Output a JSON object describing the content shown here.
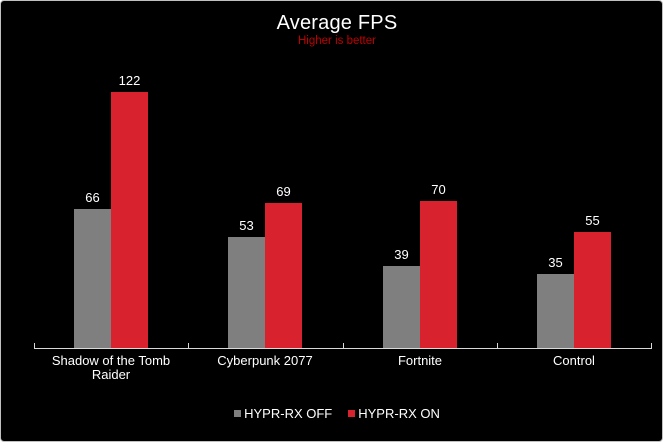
{
  "window": {
    "background_color": "#000000",
    "border_color": "#c0c0c0"
  },
  "chart_data": {
    "type": "bar",
    "title": "Average FPS",
    "subtitle": "Higher is better",
    "subtitle_color": "#c00000",
    "title_color": "#ffffff",
    "axis_color": "#d9d9d9",
    "label_color": "#ffffff",
    "categories": [
      "Shadow of the Tomb Raider",
      "Cyberpunk 2077",
      "Fortnite",
      "Control"
    ],
    "series": [
      {
        "name": "HYPR-RX OFF",
        "color": "#7f7f7f",
        "values": [
          66,
          53,
          39,
          35
        ]
      },
      {
        "name": "HYPR-RX ON",
        "color": "#d8232e",
        "values": [
          122,
          69,
          70,
          55
        ]
      }
    ],
    "ylim": [
      0,
      130
    ],
    "grid": false,
    "legend_position": "bottom",
    "value_labels": true,
    "higher_is_better": true
  }
}
